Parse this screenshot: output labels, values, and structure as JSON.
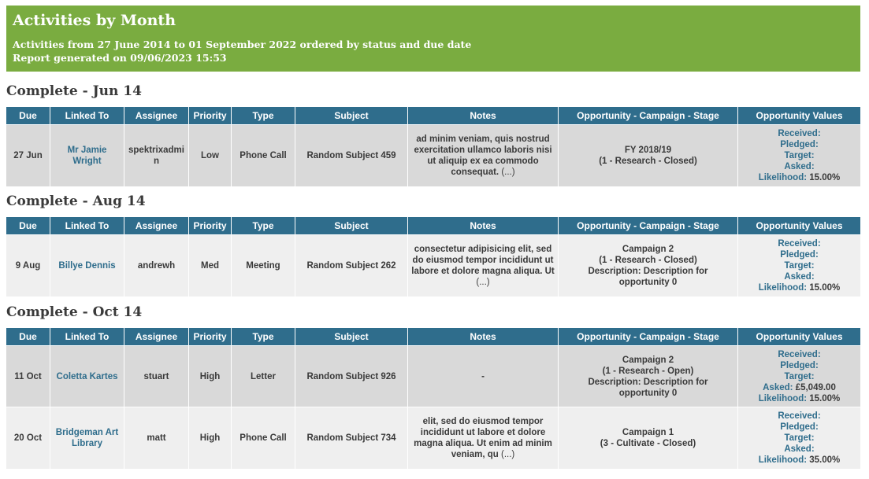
{
  "report": {
    "title": "Activities by Month",
    "subtitle": "Activities from 27 June 2014 to 01 September 2022 ordered by status and due date",
    "generated": "Report generated on 09/06/2023 15:53"
  },
  "columns": [
    "Due",
    "Linked To",
    "Assignee",
    "Priority",
    "Type",
    "Subject",
    "Notes",
    "Opportunity - Campaign - Stage",
    "Opportunity Values"
  ],
  "value_labels": {
    "received": "Received:",
    "pledged": "Pledged:",
    "target": "Target:",
    "asked": "Asked:",
    "likelihood": "Likelihood:"
  },
  "ellipsis": "(...)",
  "sections": [
    {
      "title": "Complete - Jun 14",
      "rows": [
        {
          "due": "27 Jun",
          "linked_to": "Mr Jamie Wright",
          "assignee": "spektrixadmin",
          "priority": "Low",
          "type": "Phone Call",
          "subject": "Random Subject 459",
          "notes": "ad minim veniam, quis nostrud exercitation ullamco laboris nisi ut aliquip ex ea commodo consequat.",
          "opp_line1": "FY 2018/19",
          "opp_line2": "(1 - Research - Closed)",
          "opp_line3": "",
          "asked": "",
          "likelihood": "15.00%"
        }
      ]
    },
    {
      "title": "Complete - Aug 14",
      "rows": [
        {
          "due": "9 Aug",
          "linked_to": "Billye Dennis",
          "assignee": "andrewh",
          "priority": "Med",
          "type": "Meeting",
          "subject": "Random Subject 262",
          "notes": "consectetur adipisicing elit, sed do eiusmod tempor incididunt ut labore et dolore magna aliqua. Ut",
          "opp_line1": "Campaign 2",
          "opp_line2": "(1 - Research - Closed)",
          "opp_line3": "Description: Description for opportunity 0",
          "asked": "",
          "likelihood": "15.00%"
        }
      ]
    },
    {
      "title": "Complete - Oct 14",
      "rows": [
        {
          "due": "11 Oct",
          "linked_to": "Coletta Kartes",
          "assignee": "stuart",
          "priority": "High",
          "type": "Letter",
          "subject": "Random Subject 926",
          "notes": "-",
          "opp_line1": "Campaign 2",
          "opp_line2": "(1 - Research - Open)",
          "opp_line3": "Description: Description for opportunity 0",
          "asked": "£5,049.00",
          "likelihood": "15.00%"
        },
        {
          "due": "20 Oct",
          "linked_to": "Bridgeman Art Library",
          "assignee": "matt",
          "priority": "High",
          "type": "Phone Call",
          "subject": "Random Subject 734",
          "notes": "elit, sed do eiusmod tempor incididunt ut labore et dolore magna aliqua. Ut enim ad minim veniam, qu",
          "opp_line1": "Campaign 1",
          "opp_line2": "(3 - Cultivate - Closed)",
          "opp_line3": "",
          "asked": "",
          "likelihood": "35.00%"
        }
      ]
    }
  ]
}
